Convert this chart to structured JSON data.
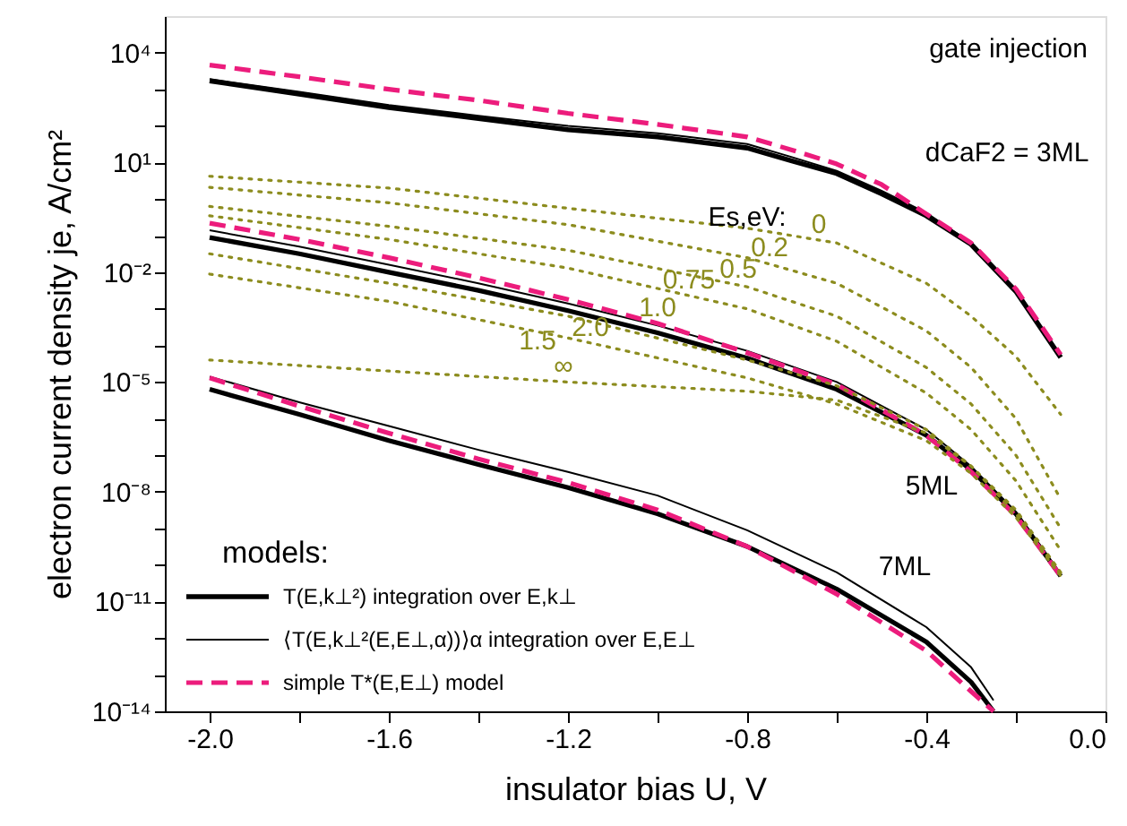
{
  "chart_data": {
    "type": "line",
    "xlabel": "insulator bias U, V",
    "ylabel": "electron current density je, A/cm²",
    "legend_title": "models:",
    "legend": "bottom left",
    "log": true,
    "grid": false,
    "xlim": [
      -2.1,
      0.0
    ],
    "xticks": [
      {
        "value": -2.0,
        "label": "-2.0"
      },
      {
        "value": -1.8,
        "label": null
      },
      {
        "value": -1.6,
        "label": "-1.6"
      },
      {
        "value": -1.4,
        "label": null
      },
      {
        "value": -1.2,
        "label": "-1.2"
      },
      {
        "value": -1.0,
        "label": null
      },
      {
        "value": -0.8,
        "label": "-0.8"
      },
      {
        "value": -0.6,
        "label": null
      },
      {
        "value": -0.4,
        "label": "-0.4"
      },
      {
        "value": -0.2,
        "label": null
      },
      {
        "value": 0.0,
        "label": "0.0"
      }
    ],
    "ylim": [
      1e-14,
      100000.0
    ],
    "yticks": [
      {
        "value": 1e-14,
        "label": "10⁻¹⁴"
      },
      {
        "value": 1e-13,
        "label": null
      },
      {
        "value": 1e-12,
        "label": null
      },
      {
        "value": 1e-11,
        "label": "10⁻¹¹"
      },
      {
        "value": 1e-10,
        "label": null
      },
      {
        "value": 1e-09,
        "label": null
      },
      {
        "value": 1e-08,
        "label": "10⁻⁸"
      },
      {
        "value": 1e-07,
        "label": null
      },
      {
        "value": 1e-06,
        "label": null
      },
      {
        "value": 1e-05,
        "label": "10⁻⁵"
      },
      {
        "value": 0.0001,
        "label": null
      },
      {
        "value": 0.001,
        "label": null
      },
      {
        "value": 0.01,
        "label": "10⁻²"
      },
      {
        "value": 0.1,
        "label": null
      },
      {
        "value": 1,
        "label": null
      },
      {
        "value": 10,
        "label": "10¹"
      },
      {
        "value": 100,
        "label": null
      },
      {
        "value": 1000,
        "label": null
      },
      {
        "value": 10000,
        "label": "10⁴"
      }
    ],
    "annotations": [
      "gate injection",
      "dCaF2 = 3ML",
      "5ML",
      "7ML",
      "Es,eV:",
      "1.5",
      {
        "text": "0",
        "x": -0.64,
        "y": 0.076
      },
      {
        "text": "0.2",
        "x": -0.75,
        "y": 0.017
      },
      {
        "text": "0.5",
        "x": -0.82,
        "y": 0.0045
      },
      {
        "text": "0.75",
        "x": -0.93,
        "y": 0.0023
      },
      {
        "text": "1.0",
        "x": -1.0,
        "y": 0.0004
      },
      {
        "text": "2.0",
        "x": -1.15,
        "y": 0.000115
      },
      {
        "text": "∞",
        "x": -1.21,
        "y": 1e-05
      }
    ],
    "series": [
      {
        "name": "T(E,k⊥²) integration over E,k⊥",
        "color": "#000000",
        "line_style": "solid",
        "x": [
          -2.0,
          -1.8,
          -1.6,
          -1.4,
          -1.2,
          -1.0,
          -0.8,
          -0.7,
          -0.6,
          -0.5,
          -0.4,
          -0.3,
          -0.2,
          -0.1
        ],
        "values": [
          1700,
          740,
          320,
          160,
          79,
          50,
          25,
          11,
          5,
          1.4,
          0.35,
          0.058,
          0.003,
          4.7e-05
        ]
      },
      {
        "name": "⟨T(E,k⊥²(E,E⊥,α))⟩α integration over E,E⊥",
        "color": "#000000",
        "line_style": "solid",
        "x": [
          -2.0,
          -1.8,
          -1.6,
          -1.4,
          -1.2,
          -1.0,
          -0.8,
          -0.7,
          -0.6,
          -0.5,
          -0.4,
          -0.3,
          -0.2,
          -0.1
        ],
        "values": [
          1900,
          850,
          370,
          190,
          100,
          63,
          32,
          14,
          5.9,
          1.7,
          0.42,
          0.063,
          0.0032,
          5e-05
        ]
      },
      {
        "name": "simple T*(E,E⊥) model",
        "color": "#ec1c7c",
        "line_style": "dashed",
        "x": [
          -2.0,
          -1.8,
          -1.6,
          -1.4,
          -1.2,
          -1.0,
          -0.8,
          -0.7,
          -0.6,
          -0.5,
          -0.4,
          -0.3,
          -0.2,
          -0.1
        ],
        "values": [
          4600,
          2200,
          1000,
          500,
          220,
          110,
          50,
          22,
          9.1,
          2.5,
          0.39,
          0.063,
          0.0035,
          5.6e-05
        ]
      },
      {
        "color": "#000000",
        "line_style": "solid",
        "x": [
          -2.0,
          -1.8,
          -1.6,
          -1.4,
          -1.2,
          -1.0,
          -0.8,
          -0.6,
          -0.4,
          -0.3,
          -0.2,
          -0.1
        ],
        "values": [
          0.089,
          0.032,
          0.01,
          0.0032,
          0.00089,
          0.00022,
          4.5e-05,
          6.3e-06,
          3.5e-07,
          4e-08,
          2.5e-09,
          5e-11
        ]
      },
      {
        "color": "#000000",
        "line_style": "solid",
        "x": [
          -2.0,
          -1.8,
          -1.6,
          -1.4,
          -1.2,
          -1.0,
          -0.8,
          -0.6,
          -0.4,
          -0.3,
          -0.2,
          -0.1
        ],
        "values": [
          0.14,
          0.05,
          0.016,
          0.005,
          0.0014,
          0.00035,
          7.1e-05,
          1e-05,
          5e-07,
          5e-08,
          2.8e-09,
          5.6e-11
        ]
      },
      {
        "color": "#ec1c7c",
        "line_style": "dashed",
        "x": [
          -2.0,
          -1.8,
          -1.6,
          -1.4,
          -1.2,
          -1.0,
          -0.8,
          -0.6,
          -0.4,
          -0.3,
          -0.2,
          -0.1
        ],
        "values": [
          0.22,
          0.079,
          0.025,
          0.0071,
          0.0018,
          0.0004,
          6.3e-05,
          8.5e-06,
          3.5e-07,
          3.5e-08,
          2.2e-09,
          5e-11
        ]
      },
      {
        "color": "#000000",
        "line_style": "solid",
        "x": [
          -2.0,
          -1.8,
          -1.6,
          -1.4,
          -1.2,
          -1.0,
          -0.8,
          -0.6,
          -0.4,
          -0.3,
          -0.25
        ],
        "values": [
          6.3e-06,
          1.3e-06,
          2.5e-07,
          5.6e-08,
          1.3e-08,
          2.5e-09,
          3.2e-10,
          2.2e-11,
          7.9e-13,
          6.3e-14,
          1e-14
        ]
      },
      {
        "color": "#000000",
        "line_style": "solid",
        "x": [
          -2.0,
          -1.8,
          -1.6,
          -1.4,
          -1.2,
          -1.0,
          -0.8,
          -0.6,
          -0.4,
          -0.3,
          -0.25
        ],
        "values": [
          1.4e-05,
          2.8e-06,
          6.3e-07,
          1.4e-07,
          3.5e-08,
          7.9e-09,
          8.9e-10,
          6.3e-11,
          2e-12,
          1.6e-13,
          2e-14
        ]
      },
      {
        "color": "#ec1c7c",
        "line_style": "dashed",
        "x": [
          -2.0,
          -1.8,
          -1.6,
          -1.4,
          -1.2,
          -1.0,
          -0.8,
          -0.6,
          -0.4,
          -0.3,
          -0.25
        ],
        "values": [
          1.3e-05,
          2.2e-06,
          4e-07,
          7.9e-08,
          1.8e-08,
          3.2e-09,
          3.2e-10,
          1.6e-11,
          4.5e-13,
          3.5e-14,
          1e-14
        ]
      },
      {
        "color": "#8c8c1e",
        "line_style": "dotted",
        "x": [
          -2.0,
          -1.6,
          -1.2,
          -0.8,
          -0.6,
          -0.4,
          -0.3,
          -0.2,
          -0.1
        ],
        "values": [
          4.2,
          2,
          0.56,
          0.16,
          0.063,
          0.005,
          0.00063,
          5e-05,
          1.3e-06
        ]
      },
      {
        "color": "#8c8c1e",
        "line_style": "dotted",
        "x": [
          -2.0,
          -1.6,
          -1.2,
          -0.8,
          -0.6,
          -0.4,
          -0.3,
          -0.2,
          -0.1
        ],
        "values": [
          2.1,
          0.79,
          0.2,
          0.025,
          0.005,
          0.00025,
          2.5e-05,
          1e-06,
          6.3e-09
        ]
      },
      {
        "color": "#8c8c1e",
        "line_style": "dotted",
        "x": [
          -2.0,
          -1.6,
          -1.2,
          -0.8,
          -0.6,
          -0.4,
          -0.3,
          -0.2,
          -0.1
        ],
        "values": [
          0.63,
          0.18,
          0.04,
          0.004,
          0.00063,
          2.5e-05,
          2.5e-06,
          1e-07,
          1e-09
        ]
      },
      {
        "color": "#8c8c1e",
        "line_style": "dotted",
        "x": [
          -2.0,
          -1.6,
          -1.2,
          -0.8,
          -0.6,
          -0.4,
          -0.3,
          -0.2,
          -0.1
        ],
        "values": [
          0.35,
          0.079,
          0.013,
          0.001,
          0.00013,
          5e-06,
          5e-07,
          2e-08,
          2.5e-10
        ]
      },
      {
        "color": "#8c8c1e",
        "line_style": "dotted",
        "x": [
          -2.0,
          -1.6,
          -1.2,
          -0.8,
          -0.6,
          -0.4,
          -0.3,
          -0.2,
          -0.1
        ],
        "values": [
          0.032,
          0.005,
          0.00063,
          4e-05,
          7.9e-06,
          5e-07,
          5e-08,
          3.2e-09,
          6.3e-11
        ]
      },
      {
        "color": "#8c8c1e",
        "line_style": "dotted",
        "x": [
          -2.0,
          -1.6,
          -1.2,
          -0.8,
          -0.6,
          -0.4,
          -0.3,
          -0.2,
          -0.1
        ],
        "values": [
          0.0089,
          0.0016,
          0.00016,
          1.3e-05,
          2.5e-06,
          2.5e-07,
          3.2e-08,
          2e-09,
          5e-11
        ]
      },
      {
        "color": "#8c8c1e",
        "line_style": "dotted",
        "x": [
          -2.0,
          -1.6,
          -1.2,
          -0.8,
          -0.6,
          -0.4,
          -0.3,
          -0.2,
          -0.1
        ],
        "values": [
          4e-05,
          2e-05,
          1e-05,
          5.6e-06,
          3.2e-06,
          4e-07,
          5e-08,
          2.5e-09,
          5.6e-11
        ]
      }
    ]
  }
}
